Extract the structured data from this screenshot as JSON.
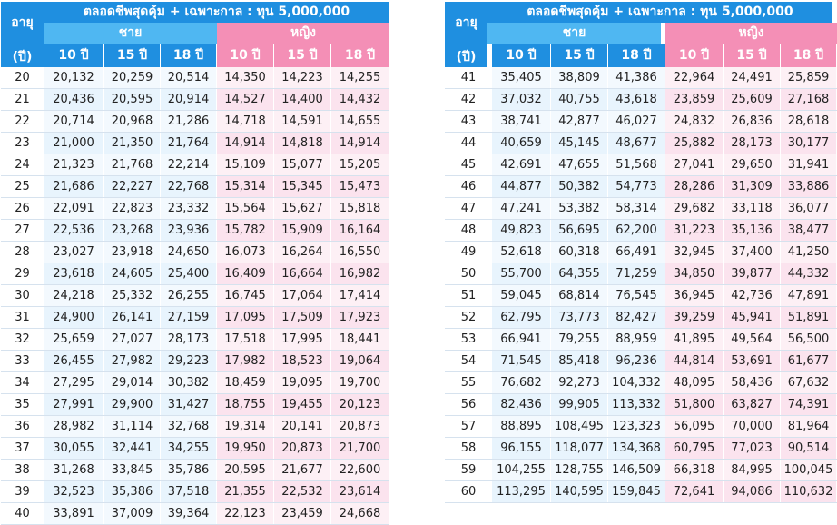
{
  "header": {
    "age_label": "อายุ",
    "age_unit": "(ปี)",
    "title": "ตลอดชีพสุดคุ้ม + เฉพาะกาล : ทุน 5,000,000",
    "male": "ชาย",
    "female": "หญิง",
    "terms": [
      "10 ปี",
      "15 ปี",
      "18 ปี"
    ]
  },
  "colors": {
    "header_blue": "#1f8fe0",
    "male_light": "#4fb7f2",
    "female_pink": "#f48fb6"
  },
  "left_rows": [
    [
      "20",
      "20,132",
      "20,259",
      "20,514",
      "14,350",
      "14,223",
      "14,255"
    ],
    [
      "21",
      "20,436",
      "20,595",
      "20,914",
      "14,527",
      "14,400",
      "14,432"
    ],
    [
      "22",
      "20,714",
      "20,968",
      "21,286",
      "14,718",
      "14,591",
      "14,655"
    ],
    [
      "23",
      "21,000",
      "21,350",
      "21,764",
      "14,914",
      "14,818",
      "14,914"
    ],
    [
      "24",
      "21,323",
      "21,768",
      "22,214",
      "15,109",
      "15,077",
      "15,205"
    ],
    [
      "25",
      "21,686",
      "22,227",
      "22,768",
      "15,314",
      "15,345",
      "15,473"
    ],
    [
      "26",
      "22,091",
      "22,823",
      "23,332",
      "15,564",
      "15,627",
      "15,818"
    ],
    [
      "27",
      "22,536",
      "23,268",
      "23,936",
      "15,782",
      "15,909",
      "16,164"
    ],
    [
      "28",
      "23,027",
      "23,918",
      "24,650",
      "16,073",
      "16,264",
      "16,550"
    ],
    [
      "29",
      "23,618",
      "24,605",
      "25,400",
      "16,409",
      "16,664",
      "16,982"
    ],
    [
      "30",
      "24,218",
      "25,332",
      "26,255",
      "16,745",
      "17,064",
      "17,414"
    ],
    [
      "31",
      "24,900",
      "26,141",
      "27,159",
      "17,095",
      "17,509",
      "17,923"
    ],
    [
      "32",
      "25,659",
      "27,027",
      "28,173",
      "17,518",
      "17,995",
      "18,441"
    ],
    [
      "33",
      "26,455",
      "27,982",
      "29,223",
      "17,982",
      "18,523",
      "19,064"
    ],
    [
      "34",
      "27,295",
      "29,014",
      "30,382",
      "18,459",
      "19,095",
      "19,700"
    ],
    [
      "35",
      "27,991",
      "29,900",
      "31,427",
      "18,755",
      "19,455",
      "20,123"
    ],
    [
      "36",
      "28,982",
      "31,114",
      "32,768",
      "19,314",
      "20,141",
      "20,873"
    ],
    [
      "37",
      "30,055",
      "32,441",
      "34,255",
      "19,950",
      "20,873",
      "21,700"
    ],
    [
      "38",
      "31,268",
      "33,845",
      "35,786",
      "20,595",
      "21,677",
      "22,600"
    ],
    [
      "39",
      "32,523",
      "35,386",
      "37,518",
      "21,355",
      "22,532",
      "23,614"
    ],
    [
      "40",
      "33,891",
      "37,009",
      "39,364",
      "22,123",
      "23,459",
      "24,668"
    ]
  ],
  "right_rows": [
    [
      "41",
      "35,405",
      "38,809",
      "41,386",
      "22,964",
      "24,491",
      "25,859"
    ],
    [
      "42",
      "37,032",
      "40,755",
      "43,618",
      "23,859",
      "25,609",
      "27,168"
    ],
    [
      "43",
      "38,741",
      "42,877",
      "46,027",
      "24,832",
      "26,836",
      "28,618"
    ],
    [
      "44",
      "40,659",
      "45,145",
      "48,677",
      "25,882",
      "28,173",
      "30,177"
    ],
    [
      "45",
      "42,691",
      "47,655",
      "51,568",
      "27,041",
      "29,650",
      "31,941"
    ],
    [
      "46",
      "44,877",
      "50,382",
      "54,773",
      "28,286",
      "31,309",
      "33,886"
    ],
    [
      "47",
      "47,241",
      "53,382",
      "58,314",
      "29,682",
      "33,118",
      "36,077"
    ],
    [
      "48",
      "49,823",
      "56,695",
      "62,200",
      "31,223",
      "35,136",
      "38,477"
    ],
    [
      "49",
      "52,618",
      "60,318",
      "66,491",
      "32,945",
      "37,400",
      "41,250"
    ],
    [
      "50",
      "55,700",
      "64,355",
      "71,259",
      "34,850",
      "39,877",
      "44,332"
    ],
    [
      "51",
      "59,045",
      "68,814",
      "76,545",
      "36,945",
      "42,736",
      "47,891"
    ],
    [
      "52",
      "62,795",
      "73,773",
      "82,427",
      "39,259",
      "45,941",
      "51,891"
    ],
    [
      "53",
      "66,941",
      "79,255",
      "88,959",
      "41,895",
      "49,564",
      "56,500"
    ],
    [
      "54",
      "71,545",
      "85,418",
      "96,236",
      "44,814",
      "53,691",
      "61,677"
    ],
    [
      "55",
      "76,682",
      "92,273",
      "104,332",
      "48,095",
      "58,436",
      "67,632"
    ],
    [
      "56",
      "82,436",
      "99,905",
      "113,332",
      "51,800",
      "63,827",
      "74,391"
    ],
    [
      "57",
      "88,895",
      "108,495",
      "123,323",
      "56,095",
      "70,000",
      "81,964"
    ],
    [
      "58",
      "96,155",
      "118,077",
      "134,368",
      "60,795",
      "77,023",
      "90,514"
    ],
    [
      "59",
      "104,255",
      "128,755",
      "146,509",
      "66,318",
      "84,995",
      "100,045"
    ],
    [
      "60",
      "113,295",
      "140,595",
      "159,845",
      "72,641",
      "94,086",
      "110,632"
    ]
  ]
}
